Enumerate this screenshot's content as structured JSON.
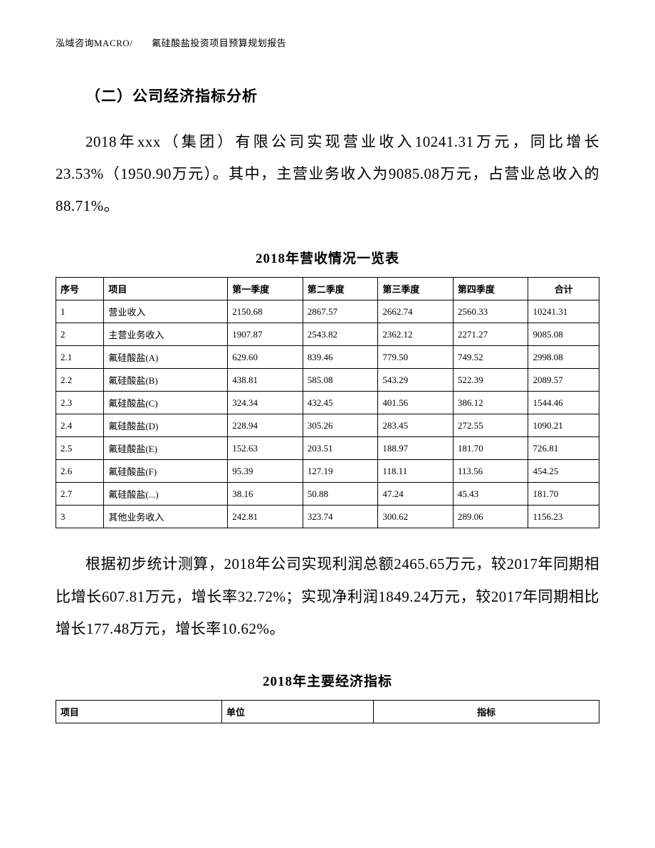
{
  "header": {
    "text": "泓域咨询MACRO/　　氟硅酸盐投资项目预算规划报告"
  },
  "section": {
    "heading": "（二）公司经济指标分析",
    "para1": "2018年xxx（集团）有限公司实现营业收入10241.31万元，同比增长23.53%（1950.90万元）。其中，主营业务收入为9085.08万元，占营业总收入的88.71%。",
    "para2": "根据初步统计测算，2018年公司实现利润总额2465.65万元，较2017年同期相比增长607.81万元，增长率32.72%；实现净利润1849.24万元，较2017年同期相比增长177.48万元，增长率10.62%。"
  },
  "table1": {
    "title": "2018年营收情况一览表",
    "columns": [
      "序号",
      "项目",
      "第一季度",
      "第二季度",
      "第三季度",
      "第四季度",
      "合计"
    ],
    "rows": [
      [
        "1",
        "营业收入",
        "2150.68",
        "2867.57",
        "2662.74",
        "2560.33",
        "10241.31"
      ],
      [
        "2",
        "主营业务收入",
        "1907.87",
        "2543.82",
        "2362.12",
        "2271.27",
        "9085.08"
      ],
      [
        "2.1",
        "氟硅酸盐(A)",
        "629.60",
        "839.46",
        "779.50",
        "749.52",
        "2998.08"
      ],
      [
        "2.2",
        "氟硅酸盐(B)",
        "438.81",
        "585.08",
        "543.29",
        "522.39",
        "2089.57"
      ],
      [
        "2.3",
        "氟硅酸盐(C)",
        "324.34",
        "432.45",
        "401.56",
        "386.12",
        "1544.46"
      ],
      [
        "2.4",
        "氟硅酸盐(D)",
        "228.94",
        "305.26",
        "283.45",
        "272.55",
        "1090.21"
      ],
      [
        "2.5",
        "氟硅酸盐(E)",
        "152.63",
        "203.51",
        "188.97",
        "181.70",
        "726.81"
      ],
      [
        "2.6",
        "氟硅酸盐(F)",
        "95.39",
        "127.19",
        "118.11",
        "113.56",
        "454.25"
      ],
      [
        "2.7",
        "氟硅酸盐(...)",
        "38.16",
        "50.88",
        "47.24",
        "45.43",
        "181.70"
      ],
      [
        "3",
        "其他业务收入",
        "242.81",
        "323.74",
        "300.62",
        "289.06",
        "1156.23"
      ]
    ]
  },
  "table2": {
    "title": "2018年主要经济指标",
    "columns": [
      "项目",
      "单位",
      "指标"
    ]
  },
  "style": {
    "page_bg": "#ffffff",
    "text_color": "#000000",
    "border_color": "#000000",
    "heading_fontsize": 21,
    "body_fontsize": 21,
    "table_title_fontsize": 19,
    "table_fontsize": 13,
    "header_fontsize": 13,
    "line_height": 2.15
  }
}
